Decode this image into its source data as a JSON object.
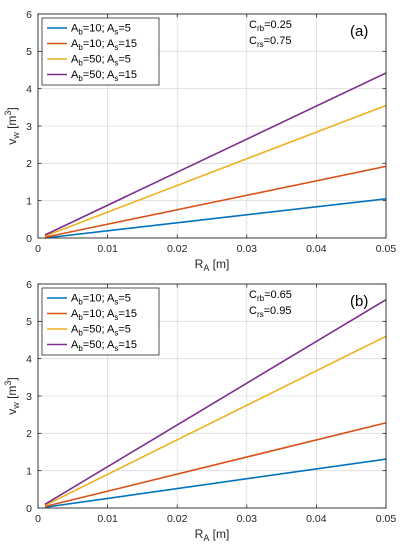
{
  "chart_data": [
    {
      "type": "line",
      "panel_label": "(a)",
      "xlabel": "R_A [m]",
      "ylabel": "v_w [m^3]",
      "xlim": [
        0,
        0.05
      ],
      "ylim": [
        0,
        6
      ],
      "xticks": [
        0,
        0.01,
        0.02,
        0.03,
        0.04,
        0.05
      ],
      "xtick_labels": [
        "0",
        "0.01",
        "0.02",
        "0.03",
        "0.04",
        "0.05"
      ],
      "yticks": [
        0,
        1,
        2,
        3,
        4,
        5,
        6
      ],
      "ytick_labels": [
        "0",
        "1",
        "2",
        "3",
        "4",
        "5",
        "6"
      ],
      "grid": true,
      "legend_position": "top-left",
      "annotations": [
        {
          "main": "C",
          "sub": "rb",
          "value": "=0.25"
        },
        {
          "main": "C",
          "sub": "rs",
          "value": "=0.75"
        }
      ],
      "series": [
        {
          "name": "A_b=10; A_s=5",
          "color": "#0072BD",
          "x": [
            0.001,
            0.05
          ],
          "y": [
            0.0,
            1.05
          ]
        },
        {
          "name": "A_b=10; A_s=15",
          "color": "#D95319",
          "x": [
            0.001,
            0.05
          ],
          "y": [
            0.02,
            1.92
          ]
        },
        {
          "name": "A_b=50; A_s=5",
          "color": "#EDB120",
          "x": [
            0.001,
            0.05
          ],
          "y": [
            0.05,
            3.55
          ]
        },
        {
          "name": "A_b=50; A_s=15",
          "color": "#7E2F8E",
          "x": [
            0.001,
            0.05
          ],
          "y": [
            0.08,
            4.42
          ]
        }
      ]
    },
    {
      "type": "line",
      "panel_label": "(b)",
      "xlabel": "R_A [m]",
      "ylabel": "v_w [m^3]",
      "xlim": [
        0,
        0.05
      ],
      "ylim": [
        0,
        6
      ],
      "xticks": [
        0,
        0.01,
        0.02,
        0.03,
        0.04,
        0.05
      ],
      "xtick_labels": [
        "0",
        "0.01",
        "0.02",
        "0.03",
        "0.04",
        "0.05"
      ],
      "yticks": [
        0,
        1,
        2,
        3,
        4,
        5,
        6
      ],
      "ytick_labels": [
        "0",
        "1",
        "2",
        "3",
        "4",
        "5",
        "6"
      ],
      "grid": true,
      "legend_position": "top-left",
      "annotations": [
        {
          "main": "C",
          "sub": "rb",
          "value": "=0.65"
        },
        {
          "main": "C",
          "sub": "rs",
          "value": "=0.95"
        }
      ],
      "series": [
        {
          "name": "A_b=10; A_s=5",
          "color": "#0072BD",
          "x": [
            0.001,
            0.05
          ],
          "y": [
            0.02,
            1.31
          ]
        },
        {
          "name": "A_b=10; A_s=15",
          "color": "#D95319",
          "x": [
            0.001,
            0.05
          ],
          "y": [
            0.04,
            2.28
          ]
        },
        {
          "name": "A_b=50; A_s=5",
          "color": "#EDB120",
          "x": [
            0.001,
            0.05
          ],
          "y": [
            0.07,
            4.6
          ]
        },
        {
          "name": "A_b=50; A_s=15",
          "color": "#7E2F8E",
          "x": [
            0.001,
            0.05
          ],
          "y": [
            0.1,
            5.58
          ]
        }
      ]
    }
  ]
}
